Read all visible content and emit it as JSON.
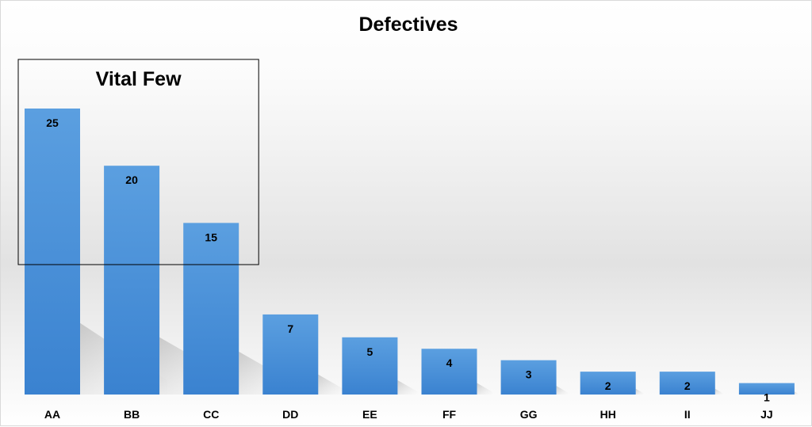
{
  "chart_data": {
    "type": "bar",
    "title": "Defectives",
    "xlabel": "",
    "ylabel": "",
    "categories": [
      "AA",
      "BB",
      "CC",
      "DD",
      "EE",
      "FF",
      "GG",
      "HH",
      "II",
      "JJ"
    ],
    "values": [
      25,
      20,
      15,
      7,
      5,
      4,
      3,
      2,
      2,
      1
    ],
    "ylim": [
      0,
      25
    ],
    "grid": false,
    "legend": "none",
    "data_labels": true,
    "bar_color": "#4a90d9",
    "annotations": [
      {
        "text": "Vital Few",
        "covers_categories": [
          "AA",
          "BB",
          "CC"
        ]
      }
    ]
  }
}
